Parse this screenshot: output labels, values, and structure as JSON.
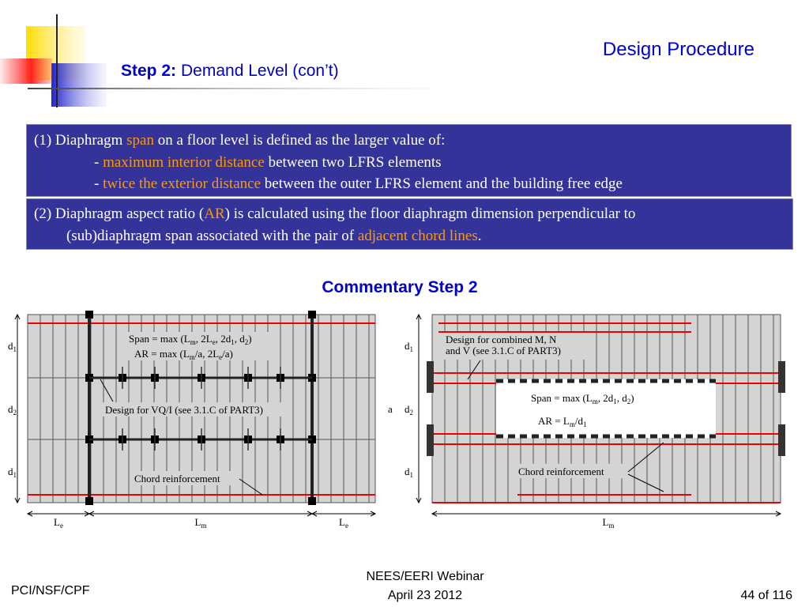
{
  "header": {
    "section": "Design Procedure",
    "step_label": "Step 2:",
    "step_title": "Demand Level (con’t)"
  },
  "box1": {
    "lines": [
      [
        "(1)  Diaphragm ",
        "span",
        " on a floor level is defined as the larger value of:"
      ],
      [
        "- ",
        "maximum interior distance",
        " between two LFRS elements"
      ],
      [
        "- ",
        "twice the exterior distance",
        " between the outer LFRS element and the building free edge"
      ]
    ]
  },
  "box2": {
    "lines": [
      [
        "(2)  Diaphragm aspect ratio (",
        "AR",
        ") is calculated using the floor diaphragm dimension perpendicular to"
      ],
      [
        "(sub)diaphragm span associated with the pair of ",
        "adjacent chord lines",
        "."
      ]
    ]
  },
  "commentary_title": "Commentary Step 2",
  "left_diagram": {
    "span_formula": [
      "Span = max (L",
      {
        "sub": "m"
      },
      ", 2L",
      {
        "sub": "e"
      },
      ", 2d",
      {
        "sub": "1"
      },
      ", d",
      {
        "sub": "2"
      },
      ")"
    ],
    "ar_formula": [
      "AR = max (L",
      {
        "sub": "m"
      },
      "/a, 2L",
      {
        "sub": "e"
      },
      "/a)"
    ],
    "vq_note": "Design for VQ/I (see 3.1.C of PART3)",
    "chord_note": "Chord reinforcement",
    "depths": [
      [
        "d",
        {
          "sub": "1"
        }
      ],
      [
        "d",
        {
          "sub": "2"
        }
      ],
      [
        "d",
        {
          "sub": "1"
        }
      ]
    ],
    "widths": [
      [
        "L",
        {
          "sub": "e"
        }
      ],
      [
        "L",
        {
          "sub": "m"
        }
      ],
      [
        "L",
        {
          "sub": "e"
        }
      ]
    ]
  },
  "right_diagram": {
    "combined_note": [
      "Design for combined M, N",
      "and V (see 3.1.C of PART3)"
    ],
    "span_formula": [
      "Span = max (L",
      {
        "sub": "m"
      },
      ", 2d",
      {
        "sub": "1"
      },
      ", d",
      {
        "sub": "2"
      },
      ")"
    ],
    "ar_formula": [
      "AR = L",
      {
        "sub": "m"
      },
      "/d",
      {
        "sub": "1"
      }
    ],
    "chord_note": "Chord reinforcement",
    "a_label": "a",
    "depths": [
      [
        "d",
        {
          "sub": "1"
        }
      ],
      [
        "d",
        {
          "sub": "2"
        }
      ],
      [
        "d",
        {
          "sub": "1"
        }
      ]
    ],
    "width": [
      "L",
      {
        "sub": "m"
      }
    ]
  },
  "footer": {
    "left": "PCI/NSF/CPF",
    "center": [
      "NEES/EERI Webinar",
      "April 23 2012"
    ],
    "right": "44 of 116"
  }
}
